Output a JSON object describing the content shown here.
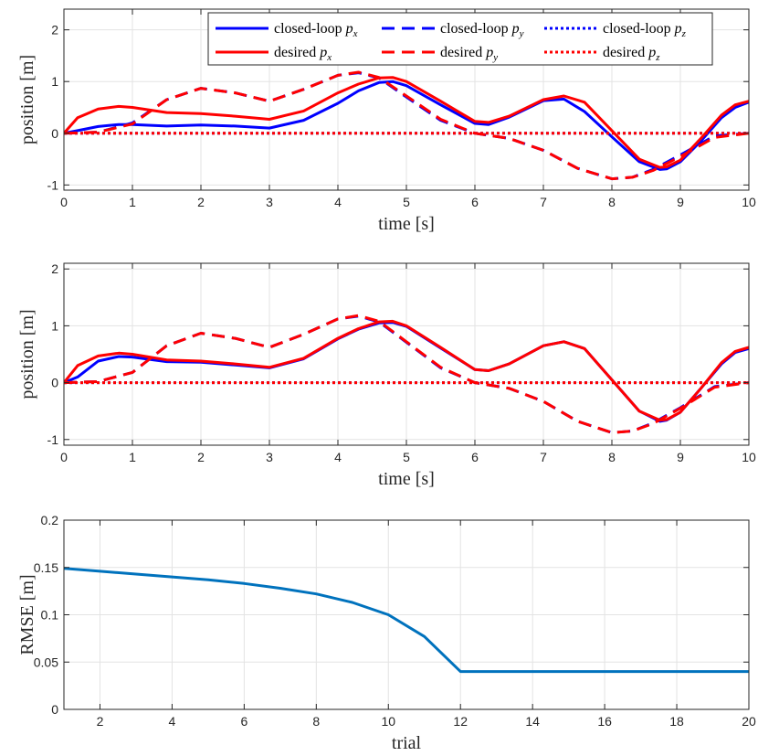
{
  "chart_data": [
    {
      "type": "line",
      "xlabel": "time [s]",
      "ylabel": "position [m]",
      "xlim": [
        0,
        10
      ],
      "ylim": [
        -1.1,
        2.4
      ],
      "xticks": [
        0,
        1,
        2,
        3,
        4,
        5,
        6,
        7,
        8,
        9,
        10
      ],
      "yticks": [
        -1,
        0,
        1,
        2
      ],
      "legend_position": "top-right",
      "legend_columns": 3,
      "grid": true,
      "series": [
        {
          "name": "closed-loop",
          "sub": "x",
          "color": "#0000ff",
          "style": "solid",
          "x": [
            0,
            0.2,
            0.5,
            0.8,
            1.0,
            1.5,
            2.0,
            2.5,
            3.0,
            3.5,
            4.0,
            4.3,
            4.6,
            4.8,
            5.0,
            5.5,
            6.0,
            6.2,
            6.5,
            7.0,
            7.3,
            7.6,
            8.0,
            8.4,
            8.7,
            8.8,
            9.0,
            9.3,
            9.6,
            9.8,
            10.0
          ],
          "y": [
            0,
            0.05,
            0.13,
            0.17,
            0.17,
            0.14,
            0.16,
            0.14,
            0.1,
            0.25,
            0.58,
            0.82,
            0.98,
            1.0,
            0.92,
            0.55,
            0.19,
            0.17,
            0.31,
            0.63,
            0.66,
            0.42,
            -0.07,
            -0.55,
            -0.7,
            -0.69,
            -0.55,
            -0.15,
            0.3,
            0.5,
            0.6
          ]
        },
        {
          "name": "closed-loop",
          "sub": "y",
          "color": "#0000ff",
          "style": "dashed",
          "x": [
            0,
            0.5,
            1.0,
            1.5,
            2.0,
            2.5,
            3.0,
            3.5,
            4.0,
            4.3,
            4.6,
            5.0,
            5.5,
            6.0,
            6.5,
            7.0,
            7.5,
            8.0,
            8.3,
            8.6,
            9.0,
            9.5,
            10.0
          ],
          "y": [
            0,
            0.02,
            0.2,
            0.65,
            0.87,
            0.78,
            0.62,
            0.85,
            1.12,
            1.17,
            1.07,
            0.7,
            0.25,
            0.0,
            -0.1,
            -0.33,
            -0.68,
            -0.88,
            -0.85,
            -0.7,
            -0.42,
            -0.05,
            0.0
          ]
        },
        {
          "name": "closed-loop",
          "sub": "z",
          "color": "#0000ff",
          "style": "dotted",
          "x": [
            0,
            10
          ],
          "y": [
            0,
            0
          ]
        },
        {
          "name": "desired",
          "sub": "x",
          "color": "#ff0000",
          "style": "solid",
          "x": [
            0,
            0.2,
            0.5,
            0.8,
            1.0,
            1.5,
            2.0,
            2.5,
            3.0,
            3.5,
            4.0,
            4.3,
            4.6,
            4.8,
            5.0,
            5.5,
            6.0,
            6.2,
            6.5,
            7.0,
            7.3,
            7.6,
            8.0,
            8.4,
            8.7,
            8.8,
            9.0,
            9.3,
            9.6,
            9.8,
            10.0
          ],
          "y": [
            0,
            0.3,
            0.47,
            0.52,
            0.5,
            0.4,
            0.38,
            0.33,
            0.27,
            0.43,
            0.78,
            0.95,
            1.07,
            1.08,
            1.0,
            0.62,
            0.23,
            0.21,
            0.33,
            0.65,
            0.72,
            0.6,
            0.05,
            -0.5,
            -0.66,
            -0.65,
            -0.52,
            -0.1,
            0.35,
            0.55,
            0.62
          ]
        },
        {
          "name": "desired",
          "sub": "y",
          "color": "#ff0000",
          "style": "dashed",
          "x": [
            0,
            0.5,
            1.0,
            1.5,
            2.0,
            2.5,
            3.0,
            3.5,
            4.0,
            4.3,
            4.6,
            5.0,
            5.5,
            6.0,
            6.5,
            7.0,
            7.5,
            8.0,
            8.3,
            8.6,
            9.0,
            9.5,
            10.0
          ],
          "y": [
            0,
            0.02,
            0.18,
            0.65,
            0.87,
            0.78,
            0.62,
            0.85,
            1.12,
            1.18,
            1.08,
            0.72,
            0.27,
            0.0,
            -0.1,
            -0.33,
            -0.68,
            -0.88,
            -0.85,
            -0.72,
            -0.45,
            -0.08,
            0.0
          ]
        },
        {
          "name": "desired",
          "sub": "z",
          "color": "#ff0000",
          "style": "dotted",
          "x": [
            0,
            10
          ],
          "y": [
            0,
            0
          ]
        }
      ]
    },
    {
      "type": "line",
      "xlabel": "time [s]",
      "ylabel": "position [m]",
      "xlim": [
        0,
        10
      ],
      "ylim": [
        -1.1,
        2.1
      ],
      "xticks": [
        0,
        1,
        2,
        3,
        4,
        5,
        6,
        7,
        8,
        9,
        10
      ],
      "yticks": [
        -1,
        0,
        1,
        2
      ],
      "grid": true,
      "series": [
        {
          "name": "closed-loop",
          "sub": "x",
          "color": "#0000ff",
          "style": "solid",
          "x": [
            0,
            0.2,
            0.5,
            0.8,
            1.0,
            1.5,
            2.0,
            2.5,
            3.0,
            3.5,
            4.0,
            4.3,
            4.6,
            4.8,
            5.0,
            5.5,
            6.0,
            6.2,
            6.5,
            7.0,
            7.3,
            7.6,
            8.0,
            8.4,
            8.7,
            8.8,
            9.0,
            9.3,
            9.6,
            9.8,
            10.0
          ],
          "y": [
            0,
            0.1,
            0.38,
            0.46,
            0.45,
            0.37,
            0.36,
            0.31,
            0.26,
            0.42,
            0.77,
            0.94,
            1.05,
            1.06,
            0.99,
            0.61,
            0.23,
            0.21,
            0.33,
            0.65,
            0.72,
            0.6,
            0.05,
            -0.5,
            -0.68,
            -0.66,
            -0.52,
            -0.1,
            0.33,
            0.53,
            0.6
          ]
        },
        {
          "name": "closed-loop",
          "sub": "y",
          "color": "#0000ff",
          "style": "dashed",
          "x": [
            0,
            0.5,
            1.0,
            1.5,
            2.0,
            2.5,
            3.0,
            3.5,
            4.0,
            4.3,
            4.6,
            5.0,
            5.5,
            6.0,
            6.5,
            7.0,
            7.5,
            8.0,
            8.3,
            8.6,
            9.0,
            9.5,
            10.0
          ],
          "y": [
            0,
            0.02,
            0.18,
            0.65,
            0.87,
            0.78,
            0.62,
            0.85,
            1.12,
            1.17,
            1.07,
            0.71,
            0.26,
            0.0,
            -0.1,
            -0.33,
            -0.68,
            -0.88,
            -0.85,
            -0.71,
            -0.44,
            -0.07,
            0.0
          ]
        },
        {
          "name": "closed-loop",
          "sub": "z",
          "color": "#0000ff",
          "style": "dotted",
          "x": [
            0,
            10
          ],
          "y": [
            0,
            0
          ]
        },
        {
          "name": "desired",
          "sub": "x",
          "color": "#ff0000",
          "style": "solid",
          "x": [
            0,
            0.2,
            0.5,
            0.8,
            1.0,
            1.5,
            2.0,
            2.5,
            3.0,
            3.5,
            4.0,
            4.3,
            4.6,
            4.8,
            5.0,
            5.5,
            6.0,
            6.2,
            6.5,
            7.0,
            7.3,
            7.6,
            8.0,
            8.4,
            8.7,
            8.8,
            9.0,
            9.3,
            9.6,
            9.8,
            10.0
          ],
          "y": [
            0,
            0.3,
            0.47,
            0.52,
            0.5,
            0.4,
            0.38,
            0.33,
            0.27,
            0.43,
            0.78,
            0.95,
            1.07,
            1.08,
            1.0,
            0.62,
            0.23,
            0.21,
            0.33,
            0.65,
            0.72,
            0.6,
            0.05,
            -0.5,
            -0.66,
            -0.65,
            -0.52,
            -0.1,
            0.35,
            0.55,
            0.62
          ]
        },
        {
          "name": "desired",
          "sub": "y",
          "color": "#ff0000",
          "style": "dashed",
          "x": [
            0,
            0.5,
            1.0,
            1.5,
            2.0,
            2.5,
            3.0,
            3.5,
            4.0,
            4.3,
            4.6,
            5.0,
            5.5,
            6.0,
            6.5,
            7.0,
            7.5,
            8.0,
            8.3,
            8.6,
            9.0,
            9.5,
            10.0
          ],
          "y": [
            0,
            0.02,
            0.18,
            0.65,
            0.87,
            0.78,
            0.62,
            0.85,
            1.12,
            1.18,
            1.08,
            0.72,
            0.27,
            0.0,
            -0.1,
            -0.33,
            -0.68,
            -0.88,
            -0.85,
            -0.72,
            -0.45,
            -0.08,
            0.0
          ]
        },
        {
          "name": "desired",
          "sub": "z",
          "color": "#ff0000",
          "style": "dotted",
          "x": [
            0,
            10
          ],
          "y": [
            0,
            0
          ]
        }
      ]
    },
    {
      "type": "line",
      "xlabel": "trial",
      "ylabel": "RMSE [m]",
      "xlim": [
        1,
        20
      ],
      "ylim": [
        0,
        0.2
      ],
      "xticks": [
        2,
        4,
        6,
        8,
        10,
        12,
        14,
        16,
        18,
        20
      ],
      "yticks": [
        0,
        0.05,
        0.1,
        0.15,
        0.2
      ],
      "ytick_labels": [
        "0",
        "0.05",
        "0.1",
        "0.15",
        "0.2"
      ],
      "grid": true,
      "series": [
        {
          "name": "RMSE",
          "color": "#0072bd",
          "style": "solid",
          "x": [
            1,
            2,
            3,
            4,
            5,
            6,
            7,
            8,
            9,
            10,
            11,
            12,
            13,
            14,
            15,
            16,
            17,
            18,
            19,
            20
          ],
          "y": [
            0.149,
            0.146,
            0.143,
            0.14,
            0.137,
            0.133,
            0.128,
            0.122,
            0.113,
            0.1,
            0.077,
            0.04,
            0.04,
            0.04,
            0.04,
            0.04,
            0.04,
            0.04,
            0.04,
            0.04
          ]
        }
      ]
    }
  ]
}
